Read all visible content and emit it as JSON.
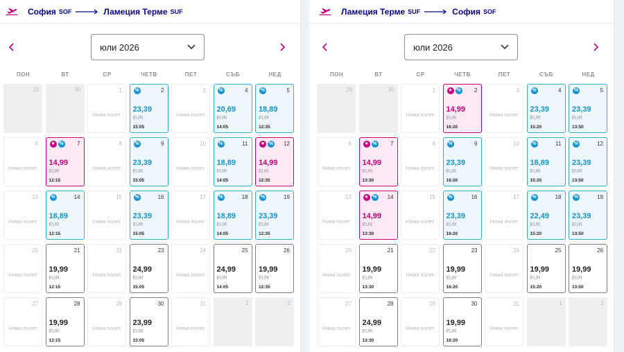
{
  "weekdays": [
    "ПОН",
    "ВТ",
    "СР",
    "ЧЕТВ",
    "ПЕТ",
    "СЪБ",
    "НЕД"
  ],
  "no_flight_label": "Няма полет",
  "icons": {
    "plane": "plane-takeoff-icon",
    "discount": "percent-icon",
    "special": "star-icon"
  },
  "colors": {
    "brand": "#c6007e",
    "discount": "#1592cf",
    "navy": "#06038d"
  },
  "panels": [
    {
      "route": {
        "from_city": "София",
        "from_code": "SOF",
        "to_city": "Ламеция Терме",
        "to_code": "SUF"
      },
      "month_label": "юли 2026",
      "weeks": [
        [
          {
            "day": "29",
            "type": "empty"
          },
          {
            "day": "30",
            "type": "empty"
          },
          {
            "day": "1",
            "type": "none"
          },
          {
            "day": "2",
            "type": "discount",
            "badges": [
              "pct"
            ],
            "price": "23,39",
            "currency": "EUR",
            "time": "15:05"
          },
          {
            "day": "3",
            "type": "none"
          },
          {
            "day": "4",
            "type": "discount",
            "badges": [
              "pct"
            ],
            "price": "20,69",
            "currency": "EUR",
            "time": "14:05"
          },
          {
            "day": "5",
            "type": "discount",
            "badges": [
              "pct"
            ],
            "price": "18,89",
            "currency": "EUR",
            "time": "12:35"
          }
        ],
        [
          {
            "day": "6",
            "type": "none"
          },
          {
            "day": "7",
            "type": "special",
            "badges": [
              "star",
              "pct"
            ],
            "price": "14,99",
            "currency": "EUR",
            "time": "12:15"
          },
          {
            "day": "8",
            "type": "none"
          },
          {
            "day": "9",
            "type": "discount",
            "badges": [
              "pct"
            ],
            "price": "23,39",
            "currency": "EUR",
            "time": "15:05"
          },
          {
            "day": "10",
            "type": "none"
          },
          {
            "day": "11",
            "type": "discount",
            "badges": [
              "pct"
            ],
            "price": "18,89",
            "currency": "EUR",
            "time": "14:05"
          },
          {
            "day": "12",
            "type": "special",
            "badges": [
              "star",
              "pct"
            ],
            "price": "14,99",
            "currency": "EUR",
            "time": "12:35"
          }
        ],
        [
          {
            "day": "13",
            "type": "none"
          },
          {
            "day": "14",
            "type": "discount",
            "badges": [
              "pct"
            ],
            "price": "18,89",
            "currency": "EUR",
            "time": "12:15"
          },
          {
            "day": "15",
            "type": "none"
          },
          {
            "day": "16",
            "type": "discount",
            "badges": [
              "pct"
            ],
            "price": "23,39",
            "currency": "EUR",
            "time": "15:05"
          },
          {
            "day": "17",
            "type": "none"
          },
          {
            "day": "18",
            "type": "discount",
            "badges": [
              "pct"
            ],
            "price": "18,89",
            "currency": "EUR",
            "time": "14:05"
          },
          {
            "day": "19",
            "type": "discount",
            "badges": [
              "pct"
            ],
            "price": "23,39",
            "currency": "EUR",
            "time": "12:35"
          }
        ],
        [
          {
            "day": "20",
            "type": "none"
          },
          {
            "day": "21",
            "type": "avail",
            "price": "19,99",
            "currency": "EUR",
            "time": "12:15"
          },
          {
            "day": "22",
            "type": "none"
          },
          {
            "day": "23",
            "type": "avail",
            "price": "24,99",
            "currency": "EUR",
            "time": "15:05"
          },
          {
            "day": "24",
            "type": "none"
          },
          {
            "day": "25",
            "type": "avail",
            "price": "24,99",
            "currency": "EUR",
            "time": "14:05"
          },
          {
            "day": "26",
            "type": "avail",
            "price": "19,99",
            "currency": "EUR",
            "time": "12:35"
          }
        ],
        [
          {
            "day": "27",
            "type": "none"
          },
          {
            "day": "28",
            "type": "avail",
            "price": "19,99",
            "currency": "EUR",
            "time": "12:15"
          },
          {
            "day": "29",
            "type": "none"
          },
          {
            "day": "30",
            "type": "avail",
            "price": "23,99",
            "currency": "EUR",
            "time": "15:05"
          },
          {
            "day": "31",
            "type": "none"
          },
          {
            "day": "1",
            "type": "empty"
          },
          {
            "day": "2",
            "type": "empty"
          }
        ]
      ]
    },
    {
      "route": {
        "from_city": "Ламеция Терме",
        "from_code": "SUF",
        "to_city": "София",
        "to_code": "SOF"
      },
      "month_label": "юли 2026",
      "weeks": [
        [
          {
            "day": "29",
            "type": "empty"
          },
          {
            "day": "30",
            "type": "empty"
          },
          {
            "day": "1",
            "type": "none"
          },
          {
            "day": "2",
            "type": "special",
            "badges": [
              "star",
              "pct"
            ],
            "price": "14,99",
            "currency": "EUR",
            "time": "16:20"
          },
          {
            "day": "3",
            "type": "none"
          },
          {
            "day": "4",
            "type": "discount",
            "badges": [
              "pct"
            ],
            "price": "23,39",
            "currency": "EUR",
            "time": "15:20"
          },
          {
            "day": "5",
            "type": "discount",
            "badges": [
              "pct"
            ],
            "price": "23,39",
            "currency": "EUR",
            "time": "13:50"
          }
        ],
        [
          {
            "day": "6",
            "type": "none"
          },
          {
            "day": "7",
            "type": "special",
            "badges": [
              "star",
              "pct"
            ],
            "price": "14,99",
            "currency": "EUR",
            "time": "13:30"
          },
          {
            "day": "8",
            "type": "none"
          },
          {
            "day": "9",
            "type": "discount",
            "badges": [
              "pct"
            ],
            "price": "23,39",
            "currency": "EUR",
            "time": "16:20"
          },
          {
            "day": "10",
            "type": "none"
          },
          {
            "day": "11",
            "type": "discount",
            "badges": [
              "pct"
            ],
            "price": "18,89",
            "currency": "EUR",
            "time": "15:20"
          },
          {
            "day": "12",
            "type": "discount",
            "badges": [
              "pct"
            ],
            "price": "23,39",
            "currency": "EUR",
            "time": "13:50"
          }
        ],
        [
          {
            "day": "13",
            "type": "none"
          },
          {
            "day": "14",
            "type": "special",
            "badges": [
              "star",
              "pct"
            ],
            "price": "14,99",
            "currency": "EUR",
            "time": "13:30"
          },
          {
            "day": "15",
            "type": "none"
          },
          {
            "day": "16",
            "type": "discount",
            "badges": [
              "pct"
            ],
            "price": "23,39",
            "currency": "EUR",
            "time": "16:20"
          },
          {
            "day": "17",
            "type": "none"
          },
          {
            "day": "18",
            "type": "discount",
            "badges": [
              "pct"
            ],
            "price": "22,49",
            "currency": "EUR",
            "time": "15:20"
          },
          {
            "day": "19",
            "type": "discount",
            "badges": [
              "pct"
            ],
            "price": "23,39",
            "currency": "EUR",
            "time": "13:50"
          }
        ],
        [
          {
            "day": "20",
            "type": "none"
          },
          {
            "day": "21",
            "type": "avail",
            "price": "19,99",
            "currency": "EUR",
            "time": "13:30"
          },
          {
            "day": "22",
            "type": "none"
          },
          {
            "day": "23",
            "type": "avail",
            "price": "19,99",
            "currency": "EUR",
            "time": "16:20"
          },
          {
            "day": "24",
            "type": "none"
          },
          {
            "day": "25",
            "type": "avail",
            "price": "19,99",
            "currency": "EUR",
            "time": "15:20"
          },
          {
            "day": "26",
            "type": "avail",
            "price": "19,99",
            "currency": "EUR",
            "time": "13:50"
          }
        ],
        [
          {
            "day": "27",
            "type": "none"
          },
          {
            "day": "28",
            "type": "avail",
            "price": "24,99",
            "currency": "EUR",
            "time": "13:30"
          },
          {
            "day": "29",
            "type": "none"
          },
          {
            "day": "30",
            "type": "avail",
            "price": "19,99",
            "currency": "EUR",
            "time": "16:20"
          },
          {
            "day": "31",
            "type": "none"
          },
          {
            "day": "1",
            "type": "empty"
          },
          {
            "day": "2",
            "type": "empty"
          }
        ]
      ]
    }
  ]
}
